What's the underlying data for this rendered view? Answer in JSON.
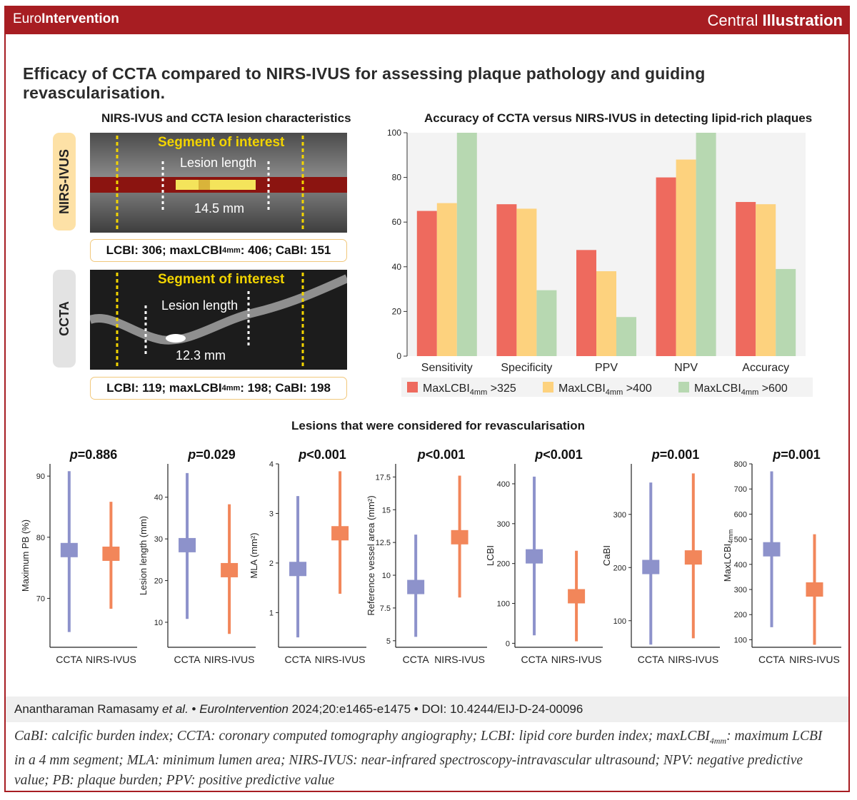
{
  "header": {
    "brand_light": "Euro",
    "brand_bold": "Intervention",
    "central_light": "Central ",
    "central_bold": "Illustration"
  },
  "main_title": "Efficacy of CCTA compared to NIRS-IVUS for assessing plaque pathology and guiding revascularisation.",
  "left_panel": {
    "title": "NIRS-IVUS and CCTA lesion characteristics",
    "nirs": {
      "tab": "NIRS-IVUS",
      "segment_label": "Segment of interest",
      "lesion_label": "Lesion length",
      "length": "14.5 mm",
      "metrics": {
        "lcbi": "LCBI: 306; maxLCBI",
        "sub": "4mm",
        "rest": ": 406; CaBI: 151"
      }
    },
    "ccta": {
      "tab": "CCTA",
      "segment_label": "Segment of interest",
      "lesion_label": "Lesion length",
      "length": "12.3 mm",
      "metrics": {
        "lcbi": "LCBI: 119; maxLCBI",
        "sub": "4mm",
        "rest": ": 198; CaBI: 198"
      }
    },
    "colors": {
      "nirs_tab": "#fde1a6",
      "ccta_tab": "#e3e3e3",
      "segment_text": "#f2d400"
    }
  },
  "chart_data": [
    {
      "type": "bar",
      "title": "Accuracy of CCTA versus NIRS-IVUS in detecting lipid-rich  plaques",
      "categories": [
        "Sensitivity",
        "Specificity",
        "PPV",
        "NPV",
        "Accuracy"
      ],
      "ylim": [
        0,
        100
      ],
      "yticks": [
        0,
        20,
        40,
        60,
        80,
        100
      ],
      "series": [
        {
          "name": "MaxLCBI",
          "sub": "4mm",
          "suffix": " >325",
          "color": "#ee6a5e",
          "values": [
            65,
            68,
            47.5,
            80,
            69
          ]
        },
        {
          "name": "MaxLCBI",
          "sub": "4mm",
          "suffix": " >400",
          "color": "#fdd27e",
          "values": [
            68.5,
            66,
            38,
            88,
            68
          ]
        },
        {
          "name": "MaxLCBI",
          "sub": "4mm",
          "suffix": " >600",
          "color": "#b7d8b1",
          "values": [
            100,
            29.5,
            17.5,
            100,
            39
          ]
        }
      ],
      "legend": "bottom"
    },
    {
      "type": "range",
      "title": "Lesions that were considered for revascularisation",
      "categories": [
        "CCTA",
        "NIRS-IVUS"
      ],
      "colors": {
        "CCTA": "#8d92cb",
        "NIRS-IVUS": "#f2865a"
      },
      "panels": [
        {
          "p": "=0.886",
          "ylabel": "Maximum PB (%)",
          "ylim": [
            62,
            92
          ],
          "yticks": [
            70,
            80,
            90
          ],
          "CCTA": {
            "min": 64.5,
            "max": 90.8,
            "median": 77.9
          },
          "NIRS-IVUS": {
            "min": 68.3,
            "max": 85.8,
            "median": 77.3
          }
        },
        {
          "p": "=0.029",
          "ylabel": "Lesion length (mm)",
          "ylim": [
            4,
            48
          ],
          "yticks": [
            10,
            20,
            30,
            40
          ],
          "CCTA": {
            "min": 10.8,
            "max": 45.8,
            "median": 28.5
          },
          "NIRS-IVUS": {
            "min": 7.2,
            "max": 38.3,
            "median": 22.5
          }
        },
        {
          "p": "<0.001",
          "ylabel": "MLA (mm²)",
          "ylim": [
            0.3,
            4
          ],
          "yticks": [
            1,
            2,
            3,
            4
          ],
          "CCTA": {
            "min": 0.5,
            "max": 3.35,
            "median": 1.88
          },
          "NIRS-IVUS": {
            "min": 1.38,
            "max": 3.85,
            "median": 2.6
          }
        },
        {
          "p": "<0.001",
          "ylabel": "Reference vessel area (mm²)",
          "ylim": [
            4.5,
            18.5
          ],
          "yticks": [
            5.0,
            7.5,
            10.0,
            12.5,
            15.0,
            17.5
          ],
          "CCTA": {
            "min": 5.3,
            "max": 13.1,
            "median": 9.1
          },
          "NIRS-IVUS": {
            "min": 8.3,
            "max": 17.6,
            "median": 12.9
          }
        },
        {
          "p": "<0.001",
          "ylabel": "LCBI",
          "ylim": [
            -10,
            450
          ],
          "yticks": [
            0,
            100,
            200,
            300,
            400
          ],
          "CCTA": {
            "min": 20,
            "max": 418,
            "median": 218
          },
          "NIRS-IVUS": {
            "min": 5,
            "max": 232,
            "median": 118
          }
        },
        {
          "p": "=0.001",
          "ylabel": "CaBI",
          "ylim": [
            50,
            395
          ],
          "yticks": [
            100,
            200,
            300
          ],
          "CCTA": {
            "min": 55,
            "max": 360,
            "median": 201
          },
          "NIRS-IVUS": {
            "min": 67,
            "max": 377,
            "median": 219
          }
        },
        {
          "p": "=0.001",
          "ylabel": "MaxLCBI",
          "ylabel_sub": "4mm",
          "ylim": [
            70,
            800
          ],
          "yticks": [
            100,
            200,
            300,
            400,
            500,
            600,
            700,
            800
          ],
          "CCTA": {
            "min": 150,
            "max": 770,
            "median": 460
          },
          "NIRS-IVUS": {
            "min": 80,
            "max": 520,
            "median": 300
          }
        }
      ]
    }
  ],
  "citation": {
    "authors": "Anantharaman Ramasamy ",
    "etal": "et al.",
    "sep1": " • ",
    "journal": "EuroIntervention",
    "ref": " 2024;20:e1465-e1475 • DOI: 10.4244/EIJ-D-24-00096"
  },
  "caption": {
    "part1": "CaBI: calcific burden index; CCTA: coronary computed tomography angiography; LCBI: lipid core burden index; maxLCBI",
    "sub": "4mm",
    "part2": ": maximum LCBI in a 4 mm segment; MLA: minimum lumen area; NIRS-IVUS: near-infrared spectroscopy-intravascular ultrasound; NPV: negative predictive value; PB: plaque burden; PPV: positive predictive value"
  }
}
